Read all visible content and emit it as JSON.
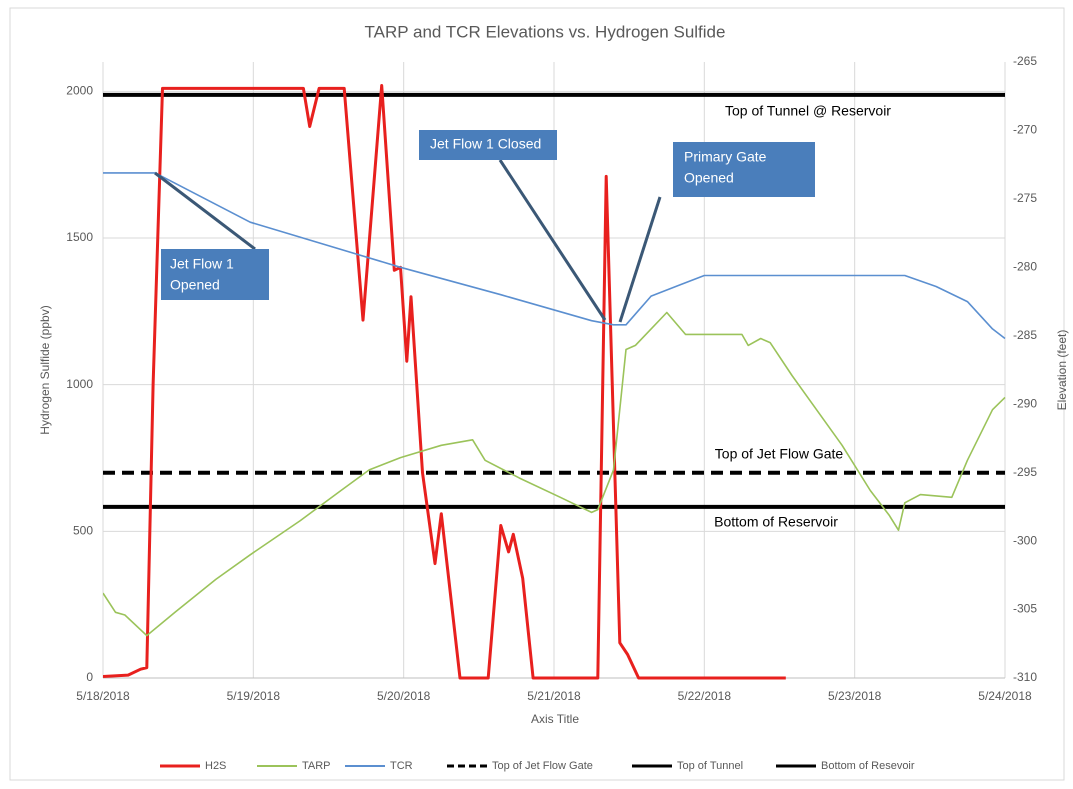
{
  "chart_data": {
    "type": "line",
    "title": "TARP and TCR Elevations vs. Hydrogen Sulfide",
    "x_label": "Axis Title",
    "y_label": "Hydrogen Sulfide (ppbv)",
    "y2_label": "Elevation (feet)",
    "xlim": [
      "2018-05-18T00:00",
      "2018-05-24T00:00"
    ],
    "xticks": [
      {
        "value": "2018-05-18T00:00",
        "label": "5/18/2018"
      },
      {
        "value": "2018-05-19T00:00",
        "label": "5/19/2018"
      },
      {
        "value": "2018-05-20T00:00",
        "label": "5/20/2018"
      },
      {
        "value": "2018-05-21T00:00",
        "label": "5/21/2018"
      },
      {
        "value": "2018-05-22T00:00",
        "label": "5/22/2018"
      },
      {
        "value": "2018-05-23T00:00",
        "label": "5/23/2018"
      },
      {
        "value": "2018-05-24T00:00",
        "label": "5/24/2018"
      }
    ],
    "ylim": [
      0,
      2100
    ],
    "yticks": [
      0,
      500,
      1000,
      1500,
      2000
    ],
    "y2lim": [
      -310,
      -265
    ],
    "y2ticks": [
      -310,
      -305,
      -300,
      -295,
      -290,
      -285,
      -280,
      -275,
      -270,
      -265
    ],
    "grid": true,
    "legend": "bottom",
    "series": [
      {
        "name": "H2S",
        "color": "#e8201e",
        "style": "solid",
        "x": [
          "2018-05-18T00:00",
          "2018-05-18T04:00",
          "2018-05-18T06:00",
          "2018-05-18T07:00",
          "2018-05-18T08:00",
          "2018-05-18T09:30",
          "2018-05-19T08:00",
          "2018-05-19T09:00",
          "2018-05-19T10:30",
          "2018-05-19T14:30",
          "2018-05-19T17:30",
          "2018-05-19T20:30",
          "2018-05-19T22:30",
          "2018-05-19T23:30",
          "2018-05-20T00:30",
          "2018-05-20T01:10",
          "2018-05-20T03:00",
          "2018-05-20T05:00",
          "2018-05-20T06:00",
          "2018-05-20T09:00",
          "2018-05-20T13:30",
          "2018-05-20T15:30",
          "2018-05-20T16:45",
          "2018-05-20T17:30",
          "2018-05-20T19:00",
          "2018-05-20T20:40",
          "2018-05-21T07:00",
          "2018-05-21T08:20",
          "2018-05-21T10:30",
          "2018-05-21T11:45",
          "2018-05-21T13:30",
          "2018-05-22T13:00"
        ],
        "values": [
          5,
          10,
          30,
          35,
          1000,
          2010,
          2010,
          1880,
          2010,
          2010,
          1220,
          2020,
          1390,
          1400,
          1080,
          1300,
          700,
          390,
          560,
          0,
          0,
          520,
          430,
          490,
          340,
          0,
          0,
          1710,
          120,
          80,
          0,
          0
        ]
      },
      {
        "name": "TARP",
        "color": "#9bc35a",
        "style": "solid",
        "axis": "y2",
        "x": [
          "2018-05-18T00:00",
          "2018-05-18T02:00",
          "2018-05-18T03:30",
          "2018-05-18T07:00",
          "2018-05-18T11:30",
          "2018-05-18T18:00",
          "2018-05-18T23:30",
          "2018-05-19T07:30",
          "2018-05-19T14:00",
          "2018-05-19T18:30",
          "2018-05-19T23:30",
          "2018-05-20T06:00",
          "2018-05-20T11:00",
          "2018-05-20T13:00",
          "2018-05-20T18:30",
          "2018-05-21T01:00",
          "2018-05-21T06:00",
          "2018-05-21T07:00",
          "2018-05-21T09:30",
          "2018-05-21T11:30",
          "2018-05-21T13:00",
          "2018-05-21T18:00",
          "2018-05-21T21:00",
          "2018-05-22T06:00",
          "2018-05-22T07:00",
          "2018-05-22T09:00",
          "2018-05-22T10:30",
          "2018-05-22T14:00",
          "2018-05-22T22:00",
          "2018-05-23T02:30",
          "2018-05-23T05:30",
          "2018-05-23T07:00",
          "2018-05-23T08:00",
          "2018-05-23T10:30",
          "2018-05-23T15:30",
          "2018-05-23T18:00",
          "2018-05-23T22:00",
          "2018-05-24T00:00"
        ],
        "values": [
          -303.8,
          -305.2,
          -305.4,
          -306.9,
          -305.2,
          -302.8,
          -301.0,
          -298.5,
          -296.3,
          -294.8,
          -293.9,
          -293.0,
          -292.6,
          -294.1,
          -295.4,
          -296.8,
          -297.9,
          -297.7,
          -294.8,
          -286.0,
          -285.7,
          -283.3,
          -284.9,
          -284.9,
          -285.7,
          -285.2,
          -285.5,
          -287.9,
          -293.0,
          -296.3,
          -298.1,
          -299.2,
          -297.2,
          -296.6,
          -296.8,
          -294.1,
          -290.4,
          -289.5
        ]
      },
      {
        "name": "TCR",
        "color": "#5b8fd0",
        "style": "solid",
        "axis": "y2",
        "x": [
          "2018-05-18T00:00",
          "2018-05-18T08:20",
          "2018-05-18T23:30",
          "2018-05-19T23:30",
          "2018-05-20T15:30",
          "2018-05-21T06:00",
          "2018-05-21T09:30",
          "2018-05-21T11:30",
          "2018-05-21T15:30",
          "2018-05-21T20:00",
          "2018-05-22T00:00",
          "2018-05-23T08:00",
          "2018-05-23T13:00",
          "2018-05-23T18:00",
          "2018-05-23T22:00",
          "2018-05-24T00:00"
        ],
        "values": [
          -273.1,
          -273.1,
          -276.7,
          -280.0,
          -282.0,
          -283.9,
          -284.2,
          -284.2,
          -282.1,
          -281.3,
          -280.6,
          -280.6,
          -281.4,
          -282.5,
          -284.5,
          -285.2
        ]
      },
      {
        "name": "Top of Jet Flow Gate",
        "color": "#000000",
        "style": "dashed",
        "axis": "y2",
        "x": [
          "2018-05-18T00:00",
          "2018-05-24T00:00"
        ],
        "values": [
          -295.0,
          -295.0
        ]
      },
      {
        "name": "Top of Tunnel",
        "color": "#000000",
        "style": "solid",
        "axis": "y2",
        "x": [
          "2018-05-18T00:00",
          "2018-05-24T00:00"
        ],
        "values": [
          -267.4,
          -267.4
        ]
      },
      {
        "name": "Bottom of Resevoir",
        "color": "#000000",
        "style": "solid",
        "axis": "y2",
        "x": [
          "2018-05-18T00:00",
          "2018-05-24T00:00"
        ],
        "values": [
          -297.5,
          -297.5
        ]
      }
    ],
    "annotations": [
      {
        "text": [
          "Top of Tunnel @ Reservoir"
        ]
      },
      {
        "text": [
          "Top of Jet Flow Gate"
        ]
      },
      {
        "text": [
          "Bottom of Reservoir"
        ]
      },
      {
        "text": [
          "Jet Flow 1",
          "Opened"
        ]
      },
      {
        "text": [
          "Jet Flow 1 Closed"
        ]
      },
      {
        "text": [
          "Primary Gate",
          "Opened"
        ]
      }
    ]
  }
}
